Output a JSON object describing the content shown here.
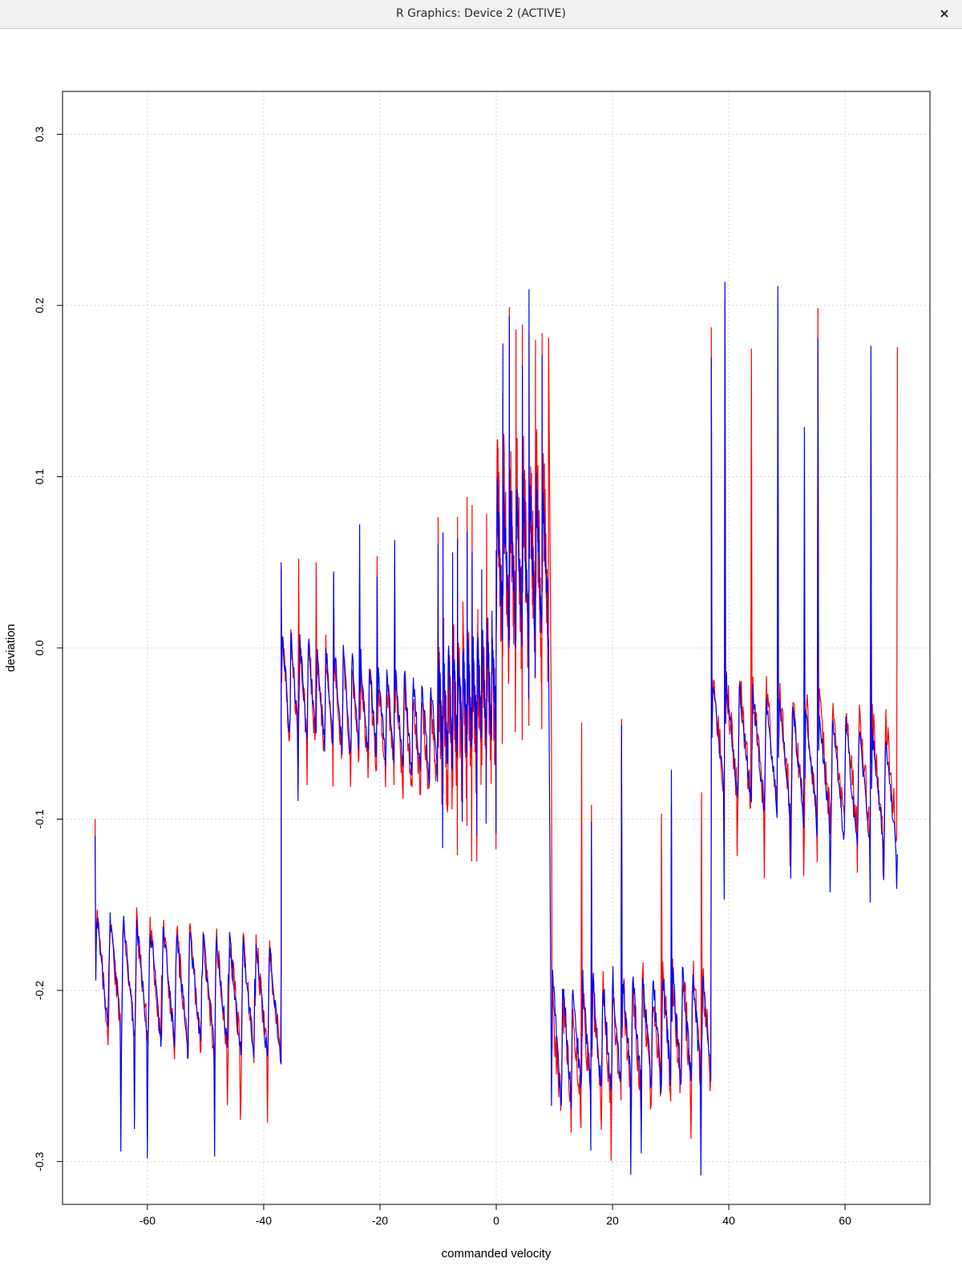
{
  "window": {
    "title": "R Graphics: Device 2 (ACTIVE)",
    "close_glyph": "×"
  },
  "chart_data": {
    "type": "line",
    "title": "",
    "xlabel": "commanded velocity",
    "ylabel": "deviation",
    "xlim": [
      -74.6,
      74.6
    ],
    "ylim": [
      -0.325,
      0.325
    ],
    "xticks": [
      -60,
      -40,
      -20,
      0,
      20,
      40,
      60
    ],
    "yticks": [
      -0.3,
      -0.2,
      -0.1,
      0.0,
      0.1,
      0.2,
      0.3
    ],
    "ytick_labels": [
      "-0.3",
      "-0.2",
      "-0.1",
      "0.0",
      "0.1",
      "0.2",
      "0.3"
    ],
    "grid": true,
    "series": [
      {
        "color": "#ff0000",
        "segments": [
          {
            "x0": -69,
            "x1": -37,
            "base_start": -0.19,
            "base_end": -0.21,
            "swing": 0.07,
            "spikes": 14,
            "peak": -0.19,
            "trough": -0.28,
            "start": -0.1,
            "noise": 0.01
          },
          {
            "x0": -37,
            "x1": -10,
            "base_start": -0.02,
            "base_end": -0.06,
            "swing": 0.06,
            "spikes": 18,
            "peak": 0.055,
            "trough": -0.1,
            "noise": 0.01
          },
          {
            "x0": -10,
            "x1": 0,
            "base_start": -0.05,
            "base_end": -0.03,
            "swing": 0.08,
            "spikes": 12,
            "peak": 0.09,
            "trough": -0.135,
            "noise": 0.03
          },
          {
            "x0": 0,
            "x1": 9,
            "base_start": 0.05,
            "base_end": 0.05,
            "swing": 0.1,
            "spikes": 8,
            "peak": 0.2,
            "trough": -0.06,
            "noise": 0.035
          },
          {
            "x0": 9.5,
            "x1": 37,
            "base_start": -0.24,
            "base_end": -0.22,
            "swing": 0.07,
            "spikes": 16,
            "peak": -0.04,
            "trough": -0.3,
            "noise": 0.015
          },
          {
            "x0": 37,
            "x1": 69,
            "base_start": -0.05,
            "base_end": -0.08,
            "swing": 0.07,
            "spikes": 14,
            "peak": 0.23,
            "trough": -0.14,
            "noise": 0.012
          }
        ]
      },
      {
        "color": "#0000ff",
        "segments": [
          {
            "x0": -69,
            "x1": -37,
            "base_start": -0.19,
            "base_end": -0.21,
            "swing": 0.07,
            "spikes": 14,
            "peak": -0.19,
            "trough": -0.3,
            "start": -0.11,
            "noise": 0.006
          },
          {
            "x0": -37,
            "x1": -10,
            "base_start": -0.02,
            "base_end": -0.05,
            "swing": 0.06,
            "spikes": 18,
            "peak": 0.075,
            "trough": -0.1,
            "noise": 0.006
          },
          {
            "x0": -10,
            "x1": 0,
            "base_start": -0.04,
            "base_end": -0.02,
            "swing": 0.06,
            "spikes": 12,
            "peak": 0.07,
            "trough": -0.12,
            "noise": 0.015
          },
          {
            "x0": 0,
            "x1": 9,
            "base_start": 0.05,
            "base_end": 0.05,
            "swing": 0.08,
            "spikes": 8,
            "peak": 0.21,
            "trough": -0.03,
            "noise": 0.015
          },
          {
            "x0": 9.5,
            "x1": 37,
            "base_start": -0.23,
            "base_end": -0.22,
            "swing": 0.07,
            "spikes": 16,
            "peak": -0.04,
            "trough": -0.31,
            "noise": 0.008
          },
          {
            "x0": 37,
            "x1": 69,
            "base_start": -0.05,
            "base_end": -0.09,
            "swing": 0.07,
            "spikes": 14,
            "peak": 0.22,
            "trough": -0.15,
            "noise": 0.006
          }
        ]
      }
    ]
  }
}
